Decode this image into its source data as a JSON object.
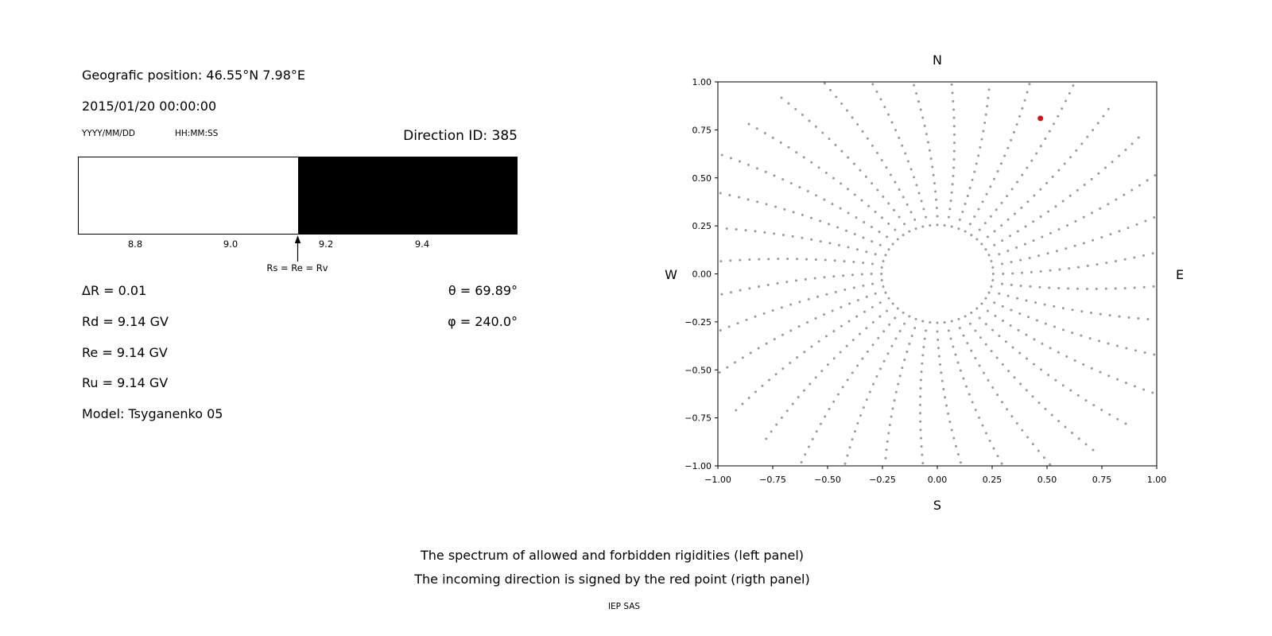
{
  "left_panel": {
    "geo_position": "Geografic position: 46.55°N 7.98°E",
    "datetime": "2015/01/20 00:00:00",
    "date_format_label": "YYYY/MM/DD",
    "time_format_label": "HH:MM:SS",
    "direction_id": "Direction ID: 385",
    "spectrum": {
      "ticks": [
        "8.8",
        "9.0",
        "9.2",
        "9.4"
      ],
      "arrow_label": "Rs = Re = Rv"
    },
    "params": {
      "delta_r": "ΔR = 0.01",
      "rd": "Rd = 9.14 GV",
      "re": "Re = 9.14 GV",
      "ru": "Ru = 9.14 GV",
      "model": "Model: Tsyganenko 05",
      "theta": "θ = 69.89°",
      "phi": "φ = 240.0°"
    }
  },
  "right_panel": {
    "labels": {
      "north": "N",
      "south": "S",
      "east": "E",
      "west": "W"
    }
  },
  "caption": {
    "line1": "The spectrum of allowed and forbidden rigidities (left panel)",
    "line2": "The incoming direction is signed by the red point (rigth panel)",
    "credit": "IEP SAS"
  },
  "chart_data": [
    {
      "type": "bar",
      "title": "Rigidity spectrum of allowed and forbidden rigidities",
      "x_range": [
        8.68,
        9.6
      ],
      "x_ticks": [
        8.8,
        9.0,
        9.2,
        9.4
      ],
      "x_tick_labels": [
        "8.8",
        "9.0",
        "9.2",
        "9.4"
      ],
      "segments": [
        {
          "from": 8.68,
          "to": 9.14,
          "color": "#ffffff",
          "meaning": "allowed rigidities"
        },
        {
          "from": 9.14,
          "to": 9.6,
          "color": "#000000",
          "meaning": "forbidden rigidities"
        }
      ],
      "annotation": {
        "x": 9.14,
        "label": "Rs = Re = Rv"
      },
      "values": {
        "delta_r": 0.01,
        "rd_gv": 9.14,
        "re_gv": 9.14,
        "ru_gv": 9.14,
        "theta_deg": 69.89,
        "phi_deg": 240.0
      }
    },
    {
      "type": "scatter",
      "title": "Incoming direction map",
      "x_range": [
        -1.0,
        1.0
      ],
      "y_range": [
        -1.0,
        1.0
      ],
      "x_ticks": [
        -1.0,
        -0.75,
        -0.5,
        -0.25,
        0.0,
        0.25,
        0.5,
        0.75,
        1.0
      ],
      "y_ticks": [
        -1.0,
        -0.75,
        -0.5,
        -0.25,
        0.0,
        0.25,
        0.5,
        0.75,
        1.0
      ],
      "x_tick_labels": [
        "−1.00",
        "−0.75",
        "−0.50",
        "−0.25",
        "0.00",
        "0.25",
        "0.50",
        "0.75",
        "1.00"
      ],
      "y_tick_labels": [
        "−1.00",
        "−0.75",
        "−0.50",
        "−0.25",
        "0.00",
        "0.25",
        "0.50",
        "0.75",
        "1.00"
      ],
      "direction_labels": {
        "top": "N",
        "bottom": "S",
        "right": "E",
        "left": "W"
      },
      "gray_points_spec": {
        "description": "radial spokes of small gray dots with an inner dotted ring",
        "spoke_count": 36,
        "spoke_angle_step_deg": 10,
        "r_start": 0.3,
        "r_step": 0.043,
        "r_end": 1.16,
        "curvature_deg_per_r": 9,
        "inner_ring_radius": 0.255,
        "inner_ring_count": 48,
        "clip": 0.995,
        "color": "#999999"
      },
      "red_point": {
        "x": 0.47,
        "y": 0.81,
        "color": "#e01010",
        "meaning": "incoming direction"
      }
    }
  ]
}
